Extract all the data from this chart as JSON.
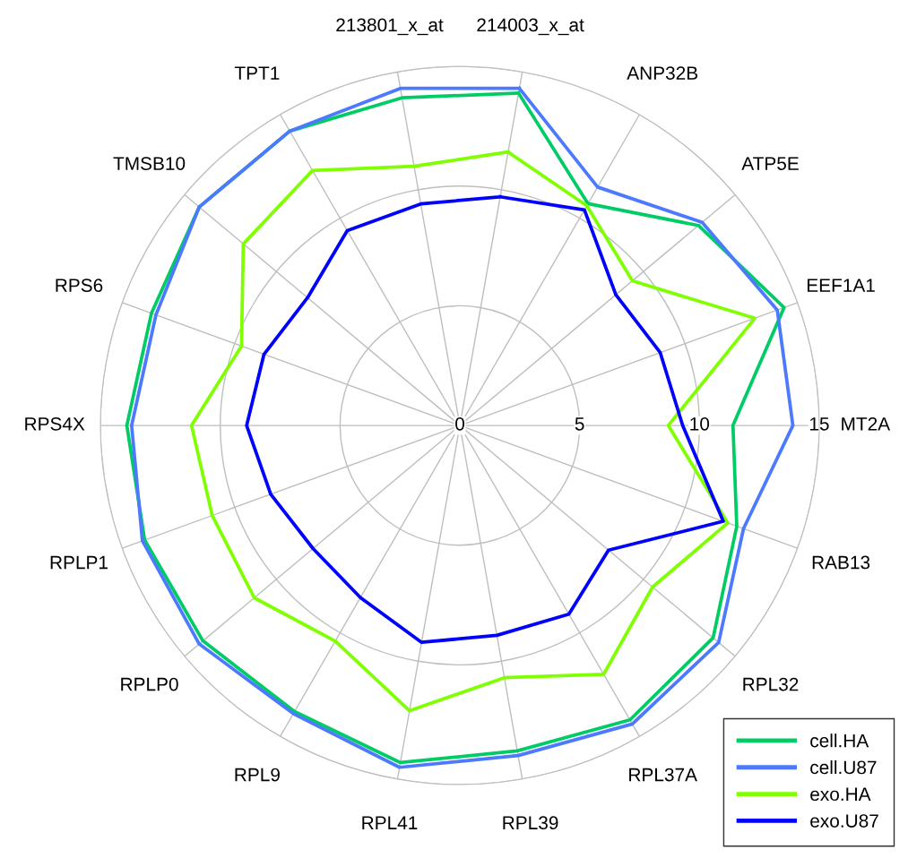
{
  "chart_data": {
    "type": "radar",
    "categories": [
      "214003_x_at",
      "ANP32B",
      "ATP5E",
      "EEF1A1",
      "MT2A",
      "RAB13",
      "RPL32",
      "RPL37A",
      "RPL39",
      "RPL41",
      "RPL9",
      "RPLP0",
      "RPLP1",
      "RPS4X",
      "RPS6",
      "TMSB10",
      "TPT1",
      "213801_x_at"
    ],
    "series": [
      {
        "name": "cell.HA",
        "color": "#00cc66",
        "values": [
          14.1,
          10.7,
          13.0,
          14.4,
          11.4,
          12.3,
          13.8,
          14.2,
          13.8,
          14.3,
          13.8,
          14.0,
          14.0,
          13.9,
          13.7,
          14.2,
          14.2,
          13.9
        ]
      },
      {
        "name": "cell.U87",
        "color": "#4d79ff",
        "values": [
          14.3,
          11.5,
          13.2,
          14.1,
          13.9,
          12.6,
          14.1,
          14.4,
          14.0,
          14.5,
          13.9,
          14.2,
          14.1,
          13.7,
          13.5,
          14.2,
          14.2,
          14.3
        ]
      },
      {
        "name": "exo.HA",
        "color": "#80ff00",
        "values": [
          11.6,
          10.6,
          9.4,
          13.1,
          8.7,
          11.9,
          10.5,
          12.0,
          10.7,
          12.1,
          10.4,
          11.2,
          11.0,
          11.2,
          9.7,
          11.8,
          12.3,
          11.0
        ]
      },
      {
        "name": "exo.U87",
        "color": "#0000ff",
        "values": [
          9.7,
          10.4,
          8.5,
          8.9,
          9.3,
          11.7,
          8.1,
          9.1,
          8.9,
          9.2,
          8.3,
          8.0,
          8.4,
          8.9,
          8.7,
          8.3,
          9.4,
          9.4
        ]
      }
    ],
    "ylim": [
      0,
      15
    ],
    "yticks": [
      0,
      5,
      10,
      15
    ],
    "grid": true,
    "legend": "bottom right",
    "marker": "none",
    "line_style": "solid"
  }
}
